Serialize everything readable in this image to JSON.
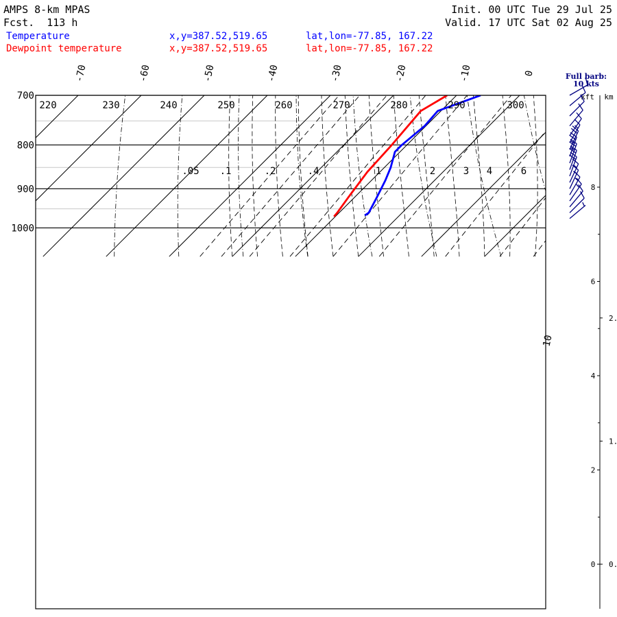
{
  "header": {
    "model": "AMPS 8-km MPAS",
    "forecast": "Fcst.  113 h",
    "init": "Init. 00 UTC Tue 29 Jul 25",
    "valid": "Valid. 17 UTC Sat 02 Aug 25"
  },
  "legend": [
    {
      "name": "Temperature",
      "xy": "x,y=387.52,519.65",
      "latlon": "lat,lon=-77.85, 167.22",
      "color": "#0000ff"
    },
    {
      "name": "Dewpoint temperature",
      "xy": "x,y=387.52,519.65",
      "latlon": "lat,lon=-77.85, 167.22",
      "color": "#ff0000"
    }
  ],
  "wind_panel": {
    "title_line1": "Full barb:",
    "title_line2": "10 kts",
    "kft_label": "kft",
    "km_label": "km",
    "kft_ticks": [
      {
        "v": 8,
        "label": "8"
      },
      {
        "v": 6,
        "label": "6"
      },
      {
        "v": 4,
        "label": "4"
      },
      {
        "v": 2,
        "label": "2"
      },
      {
        "v": 0,
        "label": "0"
      }
    ],
    "km_ticks": [
      {
        "v": 2,
        "label": "2."
      },
      {
        "v": 1,
        "label": "1."
      },
      {
        "v": 0,
        "label": "0."
      }
    ]
  },
  "chart_data": {
    "type": "skew-t",
    "ylabel": "",
    "pressure_ticks": [
      {
        "p": 700,
        "label": "700"
      },
      {
        "p": 800,
        "label": "800"
      },
      {
        "p": 900,
        "label": "900"
      },
      {
        "p": 1000,
        "label": "1000"
      }
    ],
    "temp_ticks": [
      {
        "t": -70,
        "label": "-70"
      },
      {
        "t": -60,
        "label": "-60"
      },
      {
        "t": -50,
        "label": "-50"
      },
      {
        "t": -40,
        "label": "-40"
      },
      {
        "t": -30,
        "label": "-30"
      },
      {
        "t": -20,
        "label": "-20"
      },
      {
        "t": -10,
        "label": "-10"
      },
      {
        "t": 0,
        "label": "0"
      },
      {
        "t": 10,
        "label": "10"
      }
    ],
    "dry_adiabat_labels": [
      {
        "theta": 220,
        "label": "220"
      },
      {
        "theta": 230,
        "label": "230"
      },
      {
        "theta": 240,
        "label": "240"
      },
      {
        "theta": 250,
        "label": "250"
      },
      {
        "theta": 260,
        "label": "260"
      },
      {
        "theta": 270,
        "label": "270"
      },
      {
        "theta": 280,
        "label": "280"
      },
      {
        "theta": 290,
        "label": "290"
      },
      {
        "theta": 300,
        "label": "300"
      }
    ],
    "mixing_ratio_labels": [
      {
        "w": 0.05,
        "label": ".05"
      },
      {
        "w": 0.1,
        "label": ".1"
      },
      {
        "w": 0.2,
        "label": ".2"
      },
      {
        "w": 0.4,
        "label": ".4"
      },
      {
        "w": 1,
        "label": "1"
      },
      {
        "w": 2,
        "label": "2"
      },
      {
        "w": 3,
        "label": "3"
      },
      {
        "w": 4,
        "label": "4"
      },
      {
        "w": 6,
        "label": "6"
      }
    ],
    "series": [
      {
        "name": "Temperature",
        "color": "#0000ff",
        "points": [
          {
            "p": 700,
            "t": -36.2
          },
          {
            "p": 730,
            "t": -40.5
          },
          {
            "p": 760,
            "t": -40.2
          },
          {
            "p": 800,
            "t": -40.8
          },
          {
            "p": 815,
            "t": -40.8
          },
          {
            "p": 850,
            "t": -39.0
          },
          {
            "p": 880,
            "t": -37.8
          },
          {
            "p": 920,
            "t": -36.5
          },
          {
            "p": 960,
            "t": -35.3
          },
          {
            "p": 967,
            "t": -35.5
          }
        ]
      },
      {
        "name": "Dewpoint temperature",
        "color": "#ff0000",
        "points": [
          {
            "p": 700,
            "t": -41.5
          },
          {
            "p": 730,
            "t": -43.2
          },
          {
            "p": 800,
            "t": -42.4
          },
          {
            "p": 860,
            "t": -42.0
          },
          {
            "p": 920,
            "t": -41.0
          },
          {
            "p": 960,
            "t": -40.3
          },
          {
            "p": 970,
            "t": -40.2
          }
        ]
      }
    ],
    "winds": [
      {
        "p": 700,
        "dir": 240,
        "spd": 12
      },
      {
        "p": 720,
        "dir": 230,
        "spd": 10
      },
      {
        "p": 740,
        "dir": 225,
        "spd": 10
      },
      {
        "p": 760,
        "dir": 220,
        "spd": 12
      },
      {
        "p": 780,
        "dir": 215,
        "spd": 12
      },
      {
        "p": 795,
        "dir": 210,
        "spd": 15
      },
      {
        "p": 810,
        "dir": 205,
        "spd": 20
      },
      {
        "p": 825,
        "dir": 200,
        "spd": 25
      },
      {
        "p": 840,
        "dir": 200,
        "spd": 25
      },
      {
        "p": 855,
        "dir": 200,
        "spd": 20
      },
      {
        "p": 870,
        "dir": 200,
        "spd": 20
      },
      {
        "p": 885,
        "dir": 205,
        "spd": 15
      },
      {
        "p": 900,
        "dir": 205,
        "spd": 15
      },
      {
        "p": 915,
        "dir": 210,
        "spd": 15
      },
      {
        "p": 930,
        "dir": 215,
        "spd": 15
      },
      {
        "p": 945,
        "dir": 220,
        "spd": 10
      },
      {
        "p": 960,
        "dir": 225,
        "spd": 10
      },
      {
        "p": 975,
        "dir": 230,
        "spd": 5
      }
    ]
  }
}
